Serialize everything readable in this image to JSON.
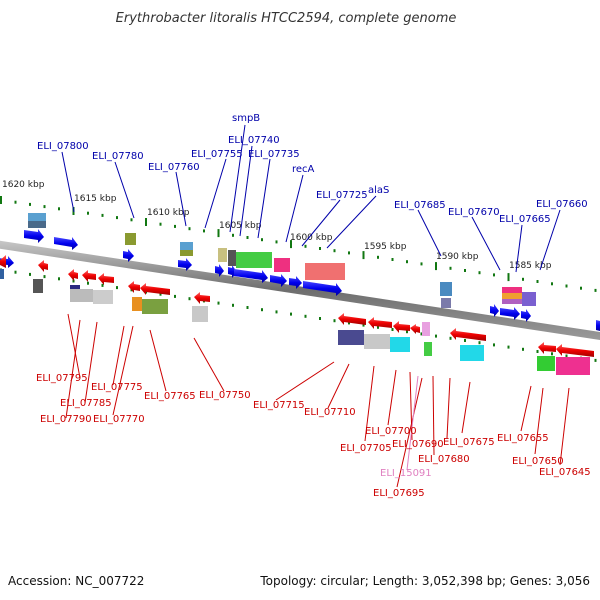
{
  "title": "Erythrobacter litoralis HTCC2594, complete genome",
  "footer": {
    "accession": "Accession: NC_007722",
    "summary": "Topology: circular; Length: 3,052,398 bp; Genes: 3,056"
  },
  "ticks": [
    "1620 kbp",
    "1615 kbp",
    "1610 kbp",
    "1605 kbp",
    "1600 kbp",
    "1595 kbp",
    "1590 kbp",
    "1585 kbp"
  ],
  "labels_top": [
    "ELI_07800",
    "ELI_07780",
    "ELI_07760",
    "ELI_07755",
    "smpB",
    "ELI_07740",
    "ELI_07735",
    "recA",
    "ELI_07725",
    "alaS",
    "ELI_07685",
    "ELI_07670",
    "ELI_07665",
    "ELI_07660"
  ],
  "labels_bottom": [
    "ELI_07795",
    "ELI_07790",
    "ELI_07785",
    "ELI_07775",
    "ELI_07770",
    "ELI_07765",
    "ELI_07750",
    "ELI_07715",
    "ELI_07710",
    "ELI_07705",
    "ELI_07700",
    "ELI_07690",
    "ELI_07680",
    "ELI_07675",
    "ELI_07655",
    "ELI_07650",
    "ELI_07645",
    "ELI_07695"
  ],
  "label_rna": "ELI_15091",
  "colors": {
    "forward_label": "#0000aa",
    "reverse_label": "#cc0000",
    "rna_label": "#e080c0",
    "forward_gene": "#0000ee",
    "reverse_gene": "#ee0000",
    "backbone": "#8a8a8a",
    "tick_mark": "#117711"
  }
}
